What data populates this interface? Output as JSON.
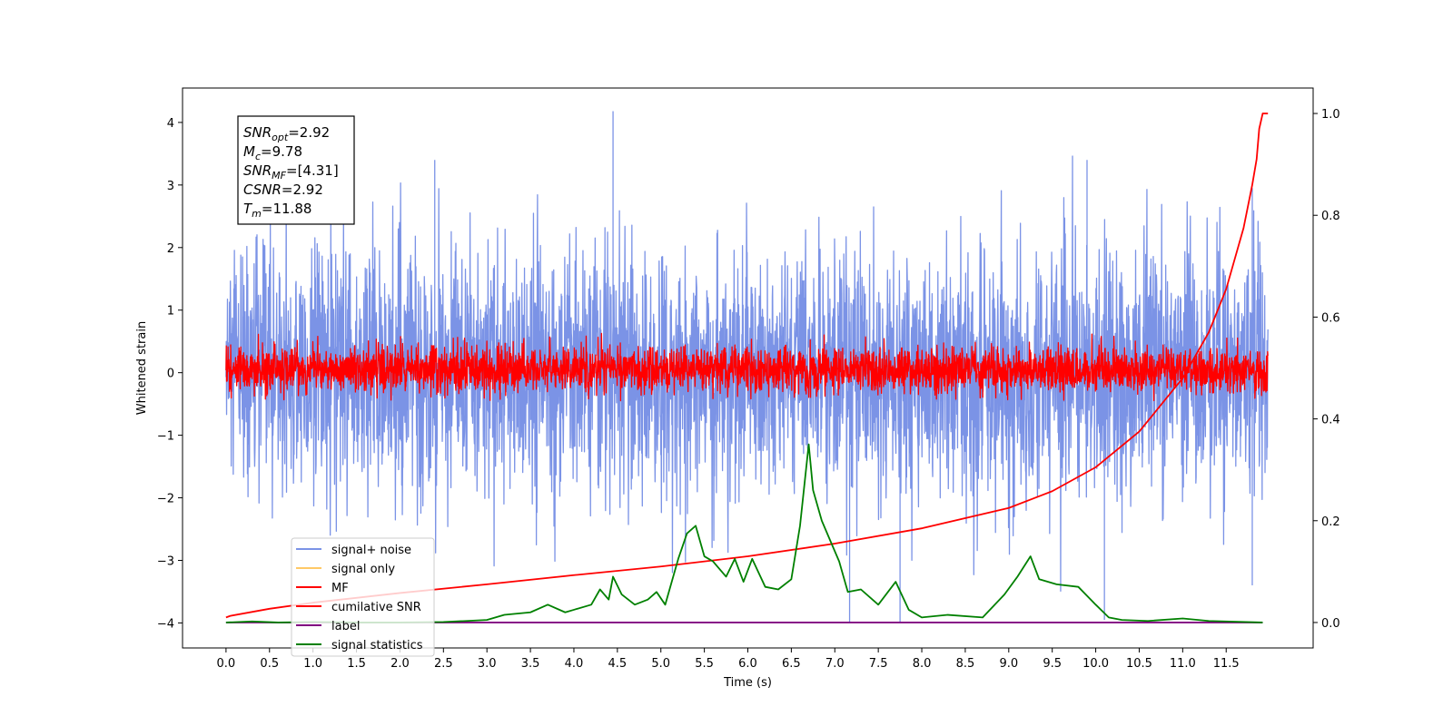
{
  "chart_data": {
    "type": "line",
    "xlabel": "Time (s)",
    "ylabel": "Whitened strain",
    "xlim": [
      -0.5,
      12.5
    ],
    "ylim": [
      -4.4,
      4.55
    ],
    "y2lim": [
      -0.05,
      1.05
    ],
    "x_ticks": [
      "0.0",
      "0.5",
      "1.0",
      "1.5",
      "2.0",
      "2.5",
      "3.0",
      "3.5",
      "4.0",
      "4.5",
      "5.0",
      "5.5",
      "6.0",
      "6.5",
      "7.0",
      "7.5",
      "8.0",
      "8.5",
      "9.0",
      "9.5",
      "10.0",
      "10.5",
      "11.0",
      "11.5"
    ],
    "y_ticks": [
      "−4",
      "−3",
      "−2",
      "−1",
      "0",
      "1",
      "2",
      "3",
      "4"
    ],
    "y2_ticks": [
      "0.0",
      "0.2",
      "0.4",
      "0.6",
      "0.8",
      "1.0"
    ],
    "legend": {
      "placement": "lower-left",
      "entries": [
        {
          "label": "signal+ noise",
          "color": "#7b93e6"
        },
        {
          "label": "signal only",
          "color": "#ffc966"
        },
        {
          "label": "MF",
          "color": "#ff0000"
        },
        {
          "label": "cumilative SNR",
          "color": "#ff0000"
        },
        {
          "label": "label",
          "color": "#800080"
        },
        {
          "label": "signal statistics",
          "color": "#008000"
        }
      ]
    },
    "annotation": {
      "lines": [
        {
          "main": "SNR",
          "sub": "opt",
          "value": "=2.92"
        },
        {
          "main": "M",
          "sub": "c",
          "value": "=9.78"
        },
        {
          "main": "SNR",
          "sub": "MF",
          "value": "=[4.31]"
        },
        {
          "main": "CSNR",
          "sub": "",
          "value": "=2.92"
        },
        {
          "main": "T",
          "sub": "m",
          "value": "=11.88"
        }
      ]
    },
    "series": [
      {
        "name": "signal+ noise",
        "axis": "left",
        "color": "#7b93e6",
        "x_start": 0.0,
        "x_end": 11.98,
        "y_center": 0.0,
        "y_std": 1.0,
        "y_max": 4.18,
        "y_min": -4.0,
        "peaks": [
          [
            4.45,
            4.18
          ],
          [
            2.4,
            3.4
          ],
          [
            9.9,
            3.4
          ],
          [
            11.8,
            2.95
          ]
        ],
        "troughs": [
          [
            7.17,
            -4.0
          ],
          [
            7.75,
            -4.0
          ],
          [
            10.1,
            -3.95
          ],
          [
            11.8,
            -3.4
          ]
        ]
      },
      {
        "name": "MF",
        "axis": "left",
        "color": "#ff0000",
        "x_start": 0.0,
        "x_end": 11.98,
        "y_center": 0.05,
        "y_std": 0.18,
        "y_max": 0.95,
        "y_min": -0.45
      },
      {
        "name": "cumilative SNR",
        "axis": "right",
        "color": "#ff0000",
        "x": [
          0.0,
          0.05,
          0.5,
          1.0,
          2.0,
          3.0,
          4.0,
          5.0,
          6.0,
          7.0,
          8.0,
          9.0,
          9.5,
          10.0,
          10.5,
          11.0,
          11.3,
          11.5,
          11.7,
          11.8,
          11.85,
          11.88,
          11.92,
          11.98
        ],
        "y": [
          0.01,
          0.013,
          0.027,
          0.039,
          0.058,
          0.075,
          0.093,
          0.11,
          0.13,
          0.155,
          0.185,
          0.225,
          0.258,
          0.305,
          0.375,
          0.48,
          0.57,
          0.655,
          0.775,
          0.86,
          0.91,
          0.97,
          1.0,
          1.0
        ]
      },
      {
        "name": "label",
        "axis": "right",
        "color": "#800080",
        "x": [
          0.0,
          11.92
        ],
        "y": [
          0.0,
          0.0
        ]
      },
      {
        "name": "signal statistics",
        "axis": "right",
        "color": "#008000",
        "x": [
          0.0,
          0.3,
          0.6,
          1.0,
          1.5,
          2.0,
          2.5,
          3.0,
          3.2,
          3.5,
          3.7,
          3.9,
          4.0,
          4.2,
          4.3,
          4.4,
          4.45,
          4.55,
          4.7,
          4.85,
          4.95,
          5.05,
          5.2,
          5.3,
          5.4,
          5.5,
          5.6,
          5.75,
          5.85,
          5.95,
          6.05,
          6.2,
          6.35,
          6.5,
          6.6,
          6.7,
          6.75,
          6.85,
          6.95,
          7.05,
          7.15,
          7.3,
          7.5,
          7.7,
          7.85,
          8.0,
          8.3,
          8.7,
          8.95,
          9.1,
          9.25,
          9.35,
          9.55,
          9.8,
          10.0,
          10.15,
          10.3,
          10.6,
          11.0,
          11.3,
          11.92
        ],
        "y": [
          0.0,
          0.002,
          0.0,
          0.001,
          0.0,
          0.0,
          0.001,
          0.005,
          0.015,
          0.02,
          0.035,
          0.02,
          0.025,
          0.035,
          0.065,
          0.045,
          0.09,
          0.055,
          0.035,
          0.045,
          0.06,
          0.035,
          0.125,
          0.175,
          0.19,
          0.13,
          0.12,
          0.09,
          0.125,
          0.08,
          0.125,
          0.07,
          0.065,
          0.085,
          0.19,
          0.35,
          0.26,
          0.2,
          0.16,
          0.12,
          0.06,
          0.065,
          0.035,
          0.08,
          0.025,
          0.01,
          0.015,
          0.01,
          0.055,
          0.09,
          0.13,
          0.085,
          0.075,
          0.07,
          0.035,
          0.01,
          0.005,
          0.003,
          0.008,
          0.003,
          0.0
        ]
      }
    ]
  }
}
